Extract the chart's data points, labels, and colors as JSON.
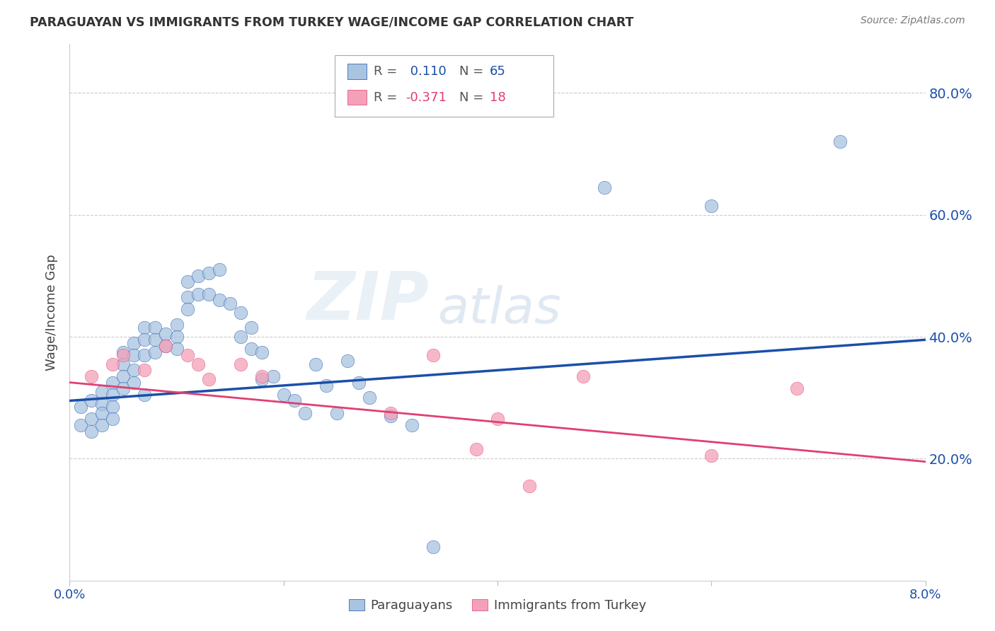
{
  "title": "PARAGUAYAN VS IMMIGRANTS FROM TURKEY WAGE/INCOME GAP CORRELATION CHART",
  "source": "Source: ZipAtlas.com",
  "ylabel": "Wage/Income Gap",
  "y_ticks": [
    0.2,
    0.4,
    0.6,
    0.8
  ],
  "y_tick_labels": [
    "20.0%",
    "40.0%",
    "60.0%",
    "80.0%"
  ],
  "xlim": [
    0.0,
    0.08
  ],
  "ylim": [
    0.0,
    0.88
  ],
  "blue_R": 0.11,
  "blue_N": 65,
  "pink_R": -0.371,
  "pink_N": 18,
  "blue_color": "#a8c4e0",
  "pink_color": "#f4a0b8",
  "blue_line_color": "#1a4faa",
  "pink_line_color": "#e04070",
  "legend_blue_label": "Paraguayans",
  "legend_pink_label": "Immigrants from Turkey",
  "watermark_zip": "ZIP",
  "watermark_atlas": "atlas",
  "blue_scatter_x": [
    0.001,
    0.001,
    0.002,
    0.002,
    0.002,
    0.003,
    0.003,
    0.003,
    0.003,
    0.004,
    0.004,
    0.004,
    0.004,
    0.005,
    0.005,
    0.005,
    0.005,
    0.006,
    0.006,
    0.006,
    0.006,
    0.007,
    0.007,
    0.007,
    0.007,
    0.008,
    0.008,
    0.008,
    0.009,
    0.009,
    0.01,
    0.01,
    0.01,
    0.011,
    0.011,
    0.011,
    0.012,
    0.012,
    0.013,
    0.013,
    0.014,
    0.014,
    0.015,
    0.016,
    0.016,
    0.017,
    0.017,
    0.018,
    0.018,
    0.019,
    0.02,
    0.021,
    0.022,
    0.023,
    0.024,
    0.025,
    0.026,
    0.027,
    0.028,
    0.03,
    0.032,
    0.034,
    0.05,
    0.06,
    0.072
  ],
  "blue_scatter_y": [
    0.285,
    0.255,
    0.295,
    0.265,
    0.245,
    0.31,
    0.29,
    0.275,
    0.255,
    0.325,
    0.305,
    0.285,
    0.265,
    0.375,
    0.355,
    0.335,
    0.315,
    0.39,
    0.37,
    0.345,
    0.325,
    0.415,
    0.395,
    0.37,
    0.305,
    0.415,
    0.395,
    0.375,
    0.405,
    0.385,
    0.42,
    0.4,
    0.38,
    0.49,
    0.465,
    0.445,
    0.5,
    0.47,
    0.505,
    0.47,
    0.51,
    0.46,
    0.455,
    0.44,
    0.4,
    0.415,
    0.38,
    0.375,
    0.33,
    0.335,
    0.305,
    0.295,
    0.275,
    0.355,
    0.32,
    0.275,
    0.36,
    0.325,
    0.3,
    0.27,
    0.255,
    0.055,
    0.645,
    0.615,
    0.72
  ],
  "pink_scatter_x": [
    0.002,
    0.004,
    0.005,
    0.007,
    0.009,
    0.011,
    0.012,
    0.013,
    0.016,
    0.018,
    0.03,
    0.034,
    0.038,
    0.04,
    0.043,
    0.048,
    0.06,
    0.068
  ],
  "pink_scatter_y": [
    0.335,
    0.355,
    0.37,
    0.345,
    0.385,
    0.37,
    0.355,
    0.33,
    0.355,
    0.335,
    0.275,
    0.37,
    0.215,
    0.265,
    0.155,
    0.335,
    0.205,
    0.315
  ],
  "blue_line_x0": 0.0,
  "blue_line_x1": 0.08,
  "blue_line_y0": 0.295,
  "blue_line_y1": 0.395,
  "pink_line_x0": 0.0,
  "pink_line_x1": 0.08,
  "pink_line_y0": 0.325,
  "pink_line_y1": 0.195
}
